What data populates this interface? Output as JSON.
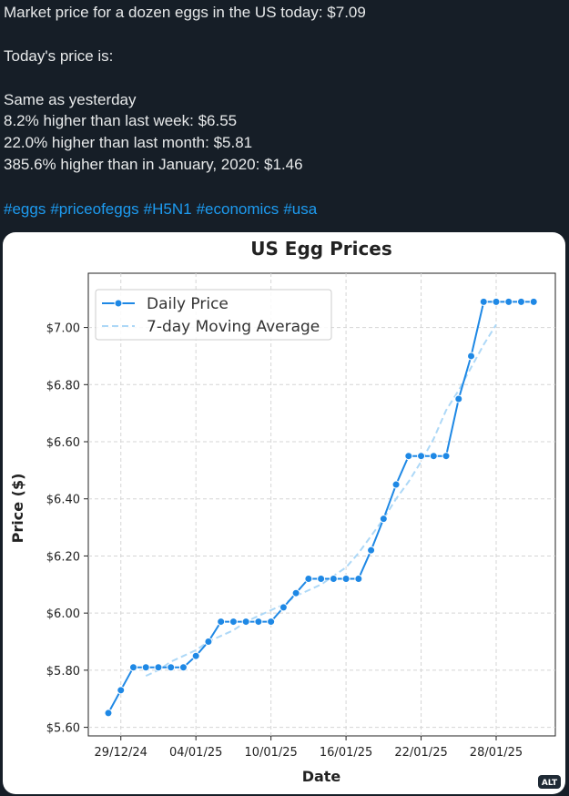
{
  "post": {
    "lines": [
      "Market price for a dozen eggs in the US today: $7.09",
      "Today's price is:",
      "Same as yesterday",
      "8.2% higher than last week: $6.55",
      "22.0% higher than last month: $5.81",
      "385.6% higher than in January, 2020: $1.46"
    ],
    "hashtags": [
      "#eggs",
      "#priceofeggs",
      "#H5N1",
      "#economics",
      "#usa"
    ],
    "alt_badge": "ALT"
  },
  "chart_data": {
    "type": "line",
    "title": "US Egg Prices",
    "x_label": "Date",
    "y_label": "Price ($)",
    "x": [
      "28/12/24",
      "29/12/24",
      "30/12/24",
      "31/12/24",
      "01/01/25",
      "02/01/25",
      "03/01/25",
      "04/01/25",
      "05/01/25",
      "06/01/25",
      "07/01/25",
      "08/01/25",
      "09/01/25",
      "10/01/25",
      "11/01/25",
      "12/01/25",
      "13/01/25",
      "14/01/25",
      "15/01/25",
      "16/01/25",
      "17/01/25",
      "18/01/25",
      "19/01/25",
      "20/01/25",
      "21/01/25",
      "22/01/25",
      "23/01/25",
      "24/01/25",
      "25/01/25",
      "26/01/25",
      "27/01/25",
      "28/01/25",
      "29/01/25",
      "30/01/25",
      "31/01/25"
    ],
    "xticks": [
      "29/12/24",
      "04/01/25",
      "10/01/25",
      "16/01/25",
      "22/01/25",
      "28/01/25"
    ],
    "series": [
      {
        "name": "Daily Price",
        "color": "#1e88e5",
        "markers": true,
        "dashed": false,
        "values": [
          5.65,
          5.73,
          5.81,
          5.81,
          5.81,
          5.81,
          5.81,
          5.85,
          5.9,
          5.97,
          5.97,
          5.97,
          5.97,
          5.97,
          6.02,
          6.07,
          6.12,
          6.12,
          6.12,
          6.12,
          6.12,
          6.22,
          6.33,
          6.45,
          6.55,
          6.55,
          6.55,
          6.55,
          6.75,
          6.9,
          7.09,
          7.09,
          7.09,
          7.09,
          7.09
        ]
      },
      {
        "name": "7-day Moving Average",
        "color": "#add8f7",
        "markers": false,
        "dashed": true,
        "values": [
          null,
          null,
          null,
          5.78,
          5.8,
          5.83,
          5.85,
          5.87,
          5.9,
          5.92,
          5.94,
          5.97,
          5.99,
          6.01,
          6.03,
          6.06,
          6.08,
          6.1,
          6.13,
          6.16,
          6.21,
          6.27,
          6.33,
          6.4,
          6.46,
          6.53,
          6.61,
          6.71,
          6.78,
          6.86,
          6.94,
          7.01,
          null,
          null,
          null
        ]
      }
    ],
    "ylim": [
      5.57,
      7.19
    ],
    "yticks": [
      {
        "value": 5.6,
        "label": "$5.60"
      },
      {
        "value": 5.8,
        "label": "$5.80"
      },
      {
        "value": 6.0,
        "label": "$6.00"
      },
      {
        "value": 6.2,
        "label": "$6.20"
      },
      {
        "value": 6.4,
        "label": "$6.40"
      },
      {
        "value": 6.6,
        "label": "$6.60"
      },
      {
        "value": 6.8,
        "label": "$6.80"
      },
      {
        "value": 7.0,
        "label": "$7.00"
      }
    ],
    "grid": true,
    "legend": "upper left"
  }
}
